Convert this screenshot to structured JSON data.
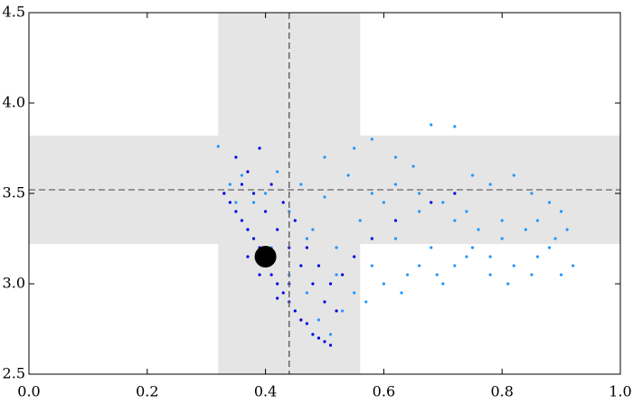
{
  "chart_data": {
    "type": "scatter",
    "xlim": [
      0,
      1
    ],
    "ylim": [
      2.5,
      4.5
    ],
    "xticks": [
      {
        "value": 0,
        "label": "0.0"
      },
      {
        "value": 0.2,
        "label": "0.2"
      },
      {
        "value": 0.4,
        "label": "0.4"
      },
      {
        "value": 0.6,
        "label": "0.6"
      },
      {
        "value": 0.8,
        "label": "0.8"
      },
      {
        "value": 1,
        "label": "1.0"
      }
    ],
    "yticks": [
      2.5,
      {
        "value": 3,
        "label": "3.0"
      },
      3.5,
      {
        "value": 4,
        "label": "4.0"
      },
      4.5
    ],
    "bands": {
      "x": [
        0.32,
        0.56
      ],
      "y": [
        3.22,
        3.82
      ],
      "color": "#e5e5e5"
    },
    "reference_lines": {
      "x": 0.44,
      "y": 3.52,
      "color": "#666666"
    },
    "marker": {
      "x": 0.4,
      "y": 3.15,
      "color": "#000000"
    },
    "series": [
      {
        "color": "#2196ff",
        "x": [
          0.34,
          0.36,
          0.38,
          0.4,
          0.42,
          0.44,
          0.46,
          0.48,
          0.5,
          0.52,
          0.54,
          0.56,
          0.58,
          0.6,
          0.62,
          0.64,
          0.66,
          0.68,
          0.7,
          0.72,
          0.74,
          0.76,
          0.78,
          0.8,
          0.82,
          0.84,
          0.86,
          0.88,
          0.9,
          0.92,
          0.53,
          0.55,
          0.57,
          0.6,
          0.63,
          0.66,
          0.69,
          0.72,
          0.75,
          0.78,
          0.81,
          0.85,
          0.89,
          0.91,
          0.5,
          0.55,
          0.58,
          0.62,
          0.65,
          0.68,
          0.72,
          0.75,
          0.78,
          0.82,
          0.85,
          0.88,
          0.9,
          0.47,
          0.52,
          0.58,
          0.62,
          0.66,
          0.7,
          0.74,
          0.8,
          0.86,
          0.35,
          0.37,
          0.33,
          0.32,
          0.41,
          0.44,
          0.47,
          0.49,
          0.51
        ],
        "values": [
          3.55,
          3.6,
          3.45,
          3.5,
          3.62,
          3.4,
          3.55,
          3.3,
          3.48,
          3.2,
          3.6,
          3.35,
          3.1,
          3.45,
          3.25,
          3.05,
          3.4,
          3.2,
          3.0,
          3.35,
          3.15,
          3.3,
          3.05,
          3.25,
          3.1,
          3.3,
          3.15,
          3.2,
          3.05,
          3.1,
          2.85,
          2.95,
          2.9,
          3.0,
          2.95,
          3.1,
          3.05,
          3.1,
          3.2,
          3.15,
          3.0,
          3.05,
          3.25,
          3.3,
          3.7,
          3.75,
          3.8,
          3.7,
          3.65,
          3.88,
          3.87,
          3.6,
          3.55,
          3.6,
          3.5,
          3.45,
          3.4,
          3.25,
          3.05,
          3.5,
          3.55,
          3.5,
          3.45,
          3.4,
          3.35,
          3.35,
          3.45,
          3.3,
          3.5,
          3.76,
          3.2,
          3.05,
          2.95,
          2.8,
          2.72
        ]
      },
      {
        "color": "#0000dd",
        "x": [
          0.33,
          0.34,
          0.35,
          0.36,
          0.37,
          0.38,
          0.39,
          0.4,
          0.41,
          0.42,
          0.43,
          0.44,
          0.45,
          0.46,
          0.47,
          0.48,
          0.49,
          0.5,
          0.51,
          0.36,
          0.38,
          0.4,
          0.42,
          0.44,
          0.46,
          0.48,
          0.5,
          0.52,
          0.35,
          0.37,
          0.39,
          0.41,
          0.43,
          0.45,
          0.47,
          0.49,
          0.51,
          0.53,
          0.55,
          0.58,
          0.62,
          0.68,
          0.72,
          0.39,
          0.42,
          0.44,
          0.37
        ],
        "values": [
          3.5,
          3.45,
          3.4,
          3.35,
          3.3,
          3.25,
          3.2,
          3.1,
          3.05,
          3.0,
          2.95,
          2.9,
          2.85,
          2.8,
          2.78,
          2.72,
          2.7,
          2.68,
          2.66,
          3.55,
          3.5,
          3.4,
          3.3,
          3.2,
          3.1,
          3.0,
          2.9,
          2.85,
          3.7,
          3.62,
          3.75,
          3.55,
          3.45,
          3.35,
          3.2,
          3.1,
          3.0,
          3.05,
          3.15,
          3.25,
          3.35,
          3.45,
          3.5,
          3.05,
          2.92,
          3.0,
          3.15
        ]
      }
    ]
  }
}
